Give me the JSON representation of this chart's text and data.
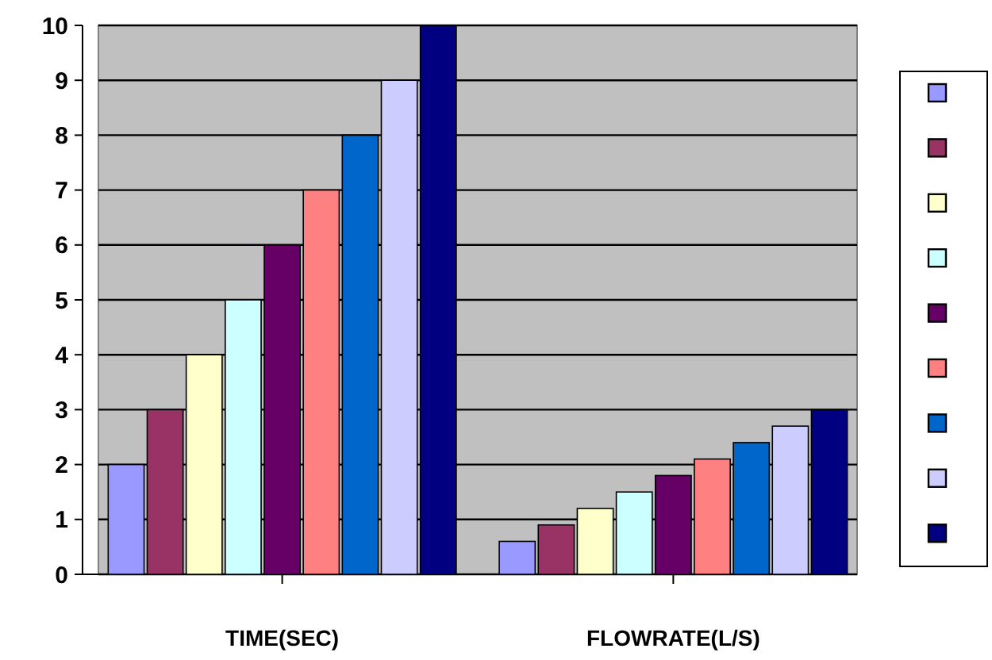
{
  "chart_data": {
    "type": "bar",
    "categories": [
      "TIME(SEC)",
      "FLOWRATE(L/S)"
    ],
    "series": [
      {
        "color": "#9999ff",
        "values": [
          2,
          0.6
        ]
      },
      {
        "color": "#993366",
        "values": [
          3,
          0.9
        ]
      },
      {
        "color": "#ffffcc",
        "values": [
          4,
          1.2
        ]
      },
      {
        "color": "#ccffff",
        "values": [
          5,
          1.5
        ]
      },
      {
        "color": "#660066",
        "values": [
          6,
          1.8
        ]
      },
      {
        "color": "#ff8080",
        "values": [
          7,
          2.1
        ]
      },
      {
        "color": "#0066cc",
        "values": [
          8,
          2.4
        ]
      },
      {
        "color": "#ccccff",
        "values": [
          9,
          2.7
        ]
      },
      {
        "color": "#000080",
        "values": [
          10,
          3.0
        ]
      }
    ],
    "ylim": [
      0,
      10
    ],
    "yticks": [
      0,
      1,
      2,
      3,
      4,
      5,
      6,
      7,
      8,
      9,
      10
    ],
    "grid": "y"
  }
}
